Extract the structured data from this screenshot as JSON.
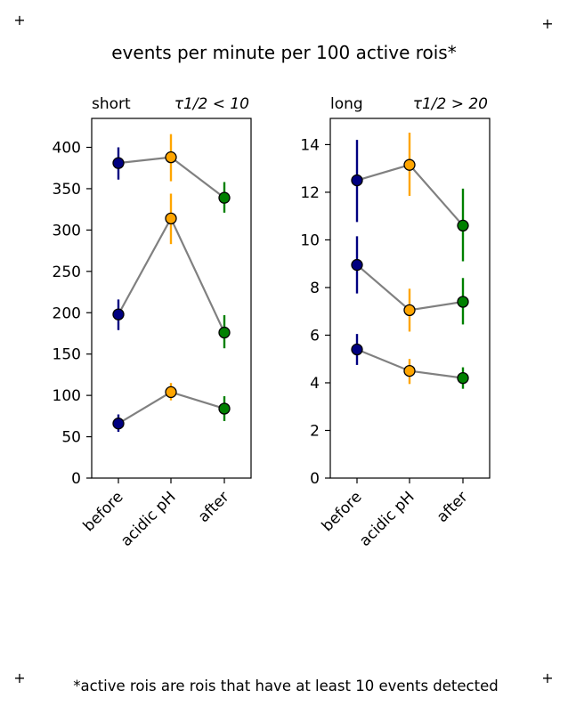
{
  "title": "events per minute per 100 active rois*",
  "footnote": "*active rois are rois that have at least 10 events detected",
  "corner_marks": [
    "+",
    "+",
    "+",
    "+"
  ],
  "colors": {
    "before": "#000080",
    "acidic": "#FFA500",
    "after": "#008000",
    "line": "#808080"
  },
  "chart_data": [
    {
      "type": "scatter",
      "title_left": "short",
      "title_right": "τ1/2 < 10",
      "categories": [
        "before",
        "acidic pH",
        "after"
      ],
      "ylim": [
        0,
        435
      ],
      "yticks": [
        0,
        50,
        100,
        150,
        200,
        250,
        300,
        350,
        400
      ],
      "grid": false,
      "series": [
        {
          "values": [
            381,
            388,
            339
          ],
          "errors": [
            [
              361,
              400
            ],
            [
              359,
              416
            ],
            [
              321,
              358
            ]
          ]
        },
        {
          "values": [
            198,
            314,
            176
          ],
          "errors": [
            [
              179,
              216
            ],
            [
              283,
              344
            ],
            [
              157,
              197
            ]
          ]
        },
        {
          "values": [
            66,
            104,
            84
          ],
          "errors": [
            [
              56,
              77
            ],
            [
              94,
              115
            ],
            [
              69,
              99
            ]
          ]
        }
      ]
    },
    {
      "type": "scatter",
      "title_left": "long",
      "title_right": "τ1/2 > 20",
      "categories": [
        "before",
        "acidic pH",
        "after"
      ],
      "ylim": [
        0,
        15.1
      ],
      "yticks": [
        0,
        2,
        4,
        6,
        8,
        10,
        12,
        14
      ],
      "grid": false,
      "series": [
        {
          "values": [
            12.5,
            13.15,
            10.6
          ],
          "errors": [
            [
              10.75,
              14.2
            ],
            [
              11.85,
              14.5
            ],
            [
              9.1,
              12.15
            ]
          ]
        },
        {
          "values": [
            8.95,
            7.05,
            7.4
          ],
          "errors": [
            [
              7.75,
              10.15
            ],
            [
              6.15,
              7.95
            ],
            [
              6.45,
              8.4
            ]
          ]
        },
        {
          "values": [
            5.4,
            4.5,
            4.2
          ],
          "errors": [
            [
              4.75,
              6.05
            ],
            [
              3.95,
              5.0
            ],
            [
              3.75,
              4.65
            ]
          ]
        }
      ]
    }
  ]
}
